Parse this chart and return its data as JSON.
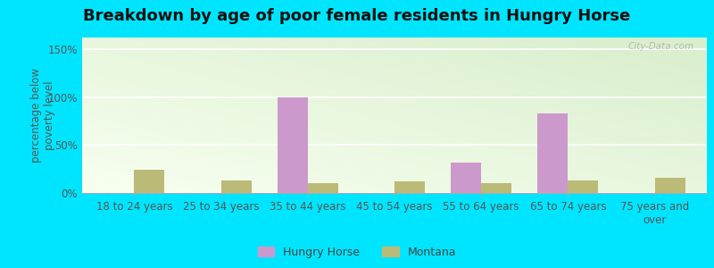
{
  "title": "Breakdown by age of poor female residents in Hungry Horse",
  "ylabel": "percentage below\npoverty level",
  "categories": [
    "18 to 24 years",
    "25 to 34 years",
    "35 to 44 years",
    "45 to 54 years",
    "55 to 64 years",
    "65 to 74 years",
    "75 years and\nover"
  ],
  "hungry_horse": [
    0,
    0,
    100,
    0,
    32,
    83,
    0
  ],
  "montana": [
    24,
    13,
    10,
    12,
    10,
    13,
    16
  ],
  "hungry_horse_color": "#cc99cc",
  "montana_color": "#bbbb77",
  "bar_width": 0.35,
  "ylim": [
    0,
    162
  ],
  "yticks": [
    0,
    50,
    100,
    150
  ],
  "ytick_labels": [
    "0%",
    "50%",
    "100%",
    "150%"
  ],
  "outer_bg": "#00e5ff",
  "title_fontsize": 13,
  "axis_fontsize": 8.5,
  "legend_fontsize": 9,
  "watermark": "City-Data.com"
}
